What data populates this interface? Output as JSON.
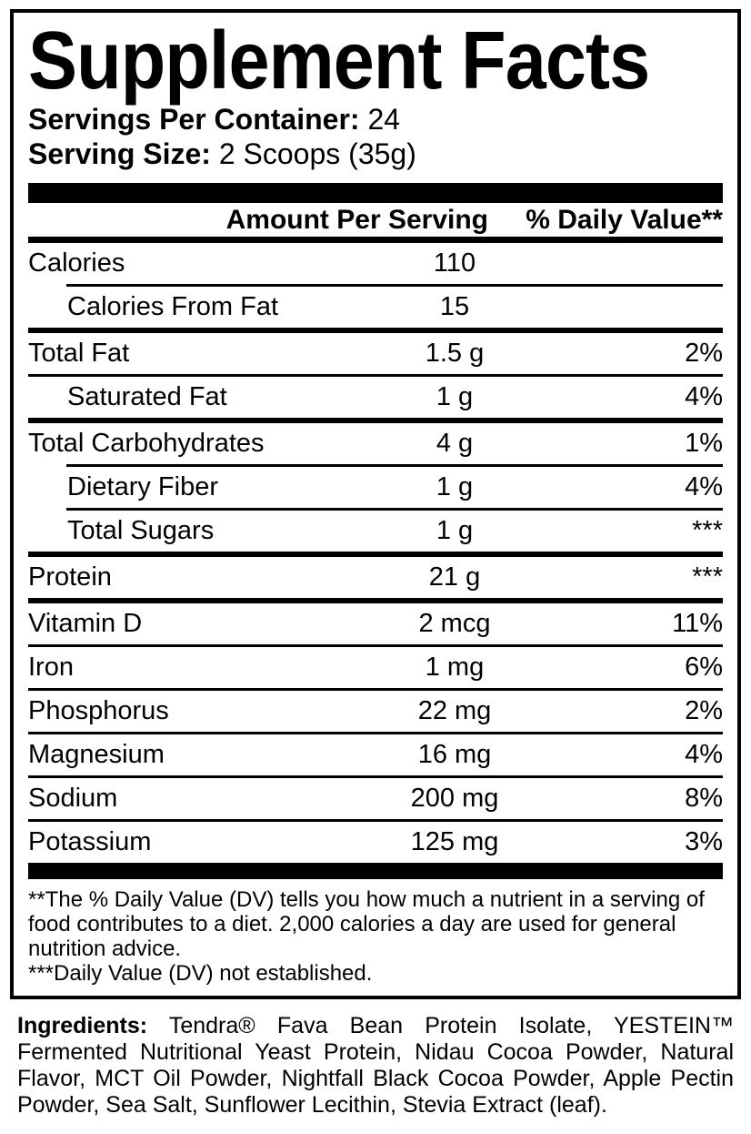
{
  "label": {
    "title": "Supplement Facts",
    "servings_per_container": {
      "label": "Servings Per Container:",
      "value": "24"
    },
    "serving_size": {
      "label": "Serving Size:",
      "value": "2 Scoops (35g)"
    },
    "columns": {
      "amount": "Amount Per Serving",
      "dv": "% Daily Value**"
    },
    "rows": [
      {
        "name": "Calories",
        "amount": "110",
        "dv": "",
        "sub": false,
        "sep": "thin-indent"
      },
      {
        "name": "Calories From Fat",
        "amount": "15",
        "dv": "",
        "sub": true,
        "sep": "med"
      },
      {
        "name": "Total Fat",
        "amount": "1.5 g",
        "dv": "2%",
        "sub": false,
        "sep": "thin"
      },
      {
        "name": "Saturated Fat",
        "amount": "1 g",
        "dv": "4%",
        "sub": true,
        "sep": "med"
      },
      {
        "name": "Total Carbohydrates",
        "amount": "4 g",
        "dv": "1%",
        "sub": false,
        "sep": "thin-indent"
      },
      {
        "name": "Dietary Fiber",
        "amount": "1 g",
        "dv": "4%",
        "sub": true,
        "sep": "thin-indent"
      },
      {
        "name": "Total Sugars",
        "amount": "1 g",
        "dv": "***",
        "sub": true,
        "sep": "med"
      },
      {
        "name": "Protein",
        "amount": "21 g",
        "dv": "***",
        "sub": false,
        "sep": "med"
      },
      {
        "name": "Vitamin D",
        "amount": "2 mcg",
        "dv": "11%",
        "sub": false,
        "sep": "thin"
      },
      {
        "name": "Iron",
        "amount": "1 mg",
        "dv": "6%",
        "sub": false,
        "sep": "thin"
      },
      {
        "name": "Phosphorus",
        "amount": "22 mg",
        "dv": "2%",
        "sub": false,
        "sep": "thin"
      },
      {
        "name": "Magnesium",
        "amount": "16 mg",
        "dv": "4%",
        "sub": false,
        "sep": "thin"
      },
      {
        "name": "Sodium",
        "amount": "200 mg",
        "dv": "8%",
        "sub": false,
        "sep": "thin"
      },
      {
        "name": "Potassium",
        "amount": "125 mg",
        "dv": "3%",
        "sub": false,
        "sep": "none"
      }
    ],
    "footnote_lines": [
      "**The % Daily Value (DV) tells you how much a nutrient in a serving of",
      "food contributes to a diet. 2,000 calories a day are used for general",
      "nutrition advice.",
      "***Daily Value (DV) not established."
    ],
    "ingredients": {
      "label": "Ingredients:",
      "lines": [
        "Tendra® Fava Bean Protein Isolate, YESTEIN™",
        "Fermented Nutritional Yeast Protein, Nidau Cocoa Powder, Natural",
        "Flavor, MCT Oil Powder, Nightfall Black Cocoa Powder, Apple Pectin",
        "Powder, Sea Salt, Sunflower Lecithin, Stevia Extract (leaf)."
      ]
    },
    "colors": {
      "ink": "#000000",
      "paper": "#ffffff"
    }
  }
}
